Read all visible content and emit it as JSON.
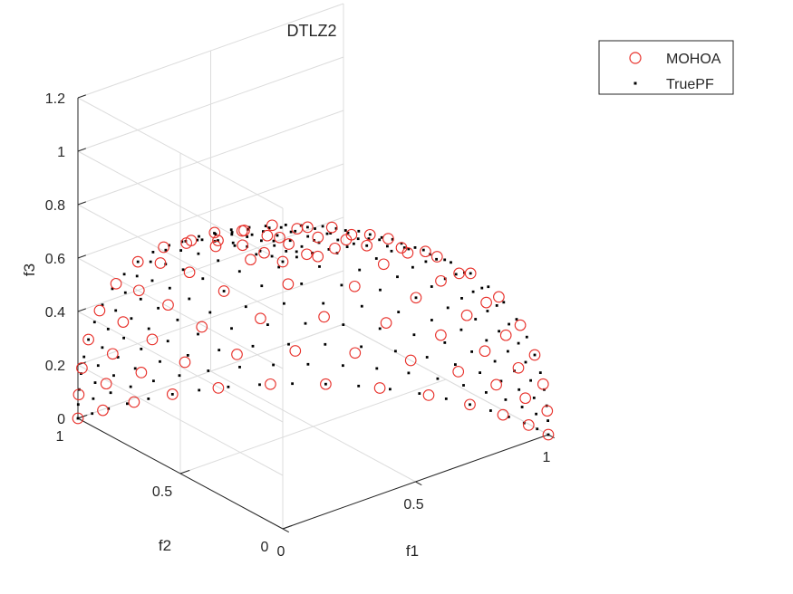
{
  "chart_data": {
    "type": "scatter",
    "title": "DTLZ2",
    "xlabel": "f1",
    "ylabel": "f2",
    "zlabel": "f3",
    "xlim": [
      0,
      1
    ],
    "ylim": [
      0,
      1
    ],
    "zlim": [
      0,
      1.2
    ],
    "x_ticks": [
      0,
      0.5,
      1
    ],
    "y_ticks": [
      0,
      0.5,
      1
    ],
    "z_ticks": [
      0,
      0.2,
      0.4,
      0.6,
      0.8,
      1,
      1.2
    ],
    "x_tick_labels": [
      "0",
      "0.5",
      "1"
    ],
    "y_tick_labels": [
      "0",
      "0.5",
      "1"
    ],
    "z_tick_labels": [
      "0",
      "0.2",
      "0.4",
      "0.6",
      "0.8",
      "1",
      "1.2"
    ],
    "grid": true,
    "legend_position": "top-right",
    "surface": "unit sphere octant f1^2 + f2^2 + f3^2 = 1",
    "series": [
      {
        "name": "MOHOA",
        "marker": "open-circle",
        "color": "#e8302a",
        "description": "Approximately uniformly spread points on the first-octant unit sphere (91 reference directions on a 13-division simplex lattice, normalized)."
      },
      {
        "name": "TruePF",
        "marker": "dot",
        "color": "#000000",
        "description": "Dense sampling of the true Pareto front: first-octant unit sphere."
      }
    ]
  },
  "colors": {
    "axis": "#262626",
    "grid": "#dcdcdc",
    "mohoa": "#e8302a",
    "truepf": "#000000"
  }
}
